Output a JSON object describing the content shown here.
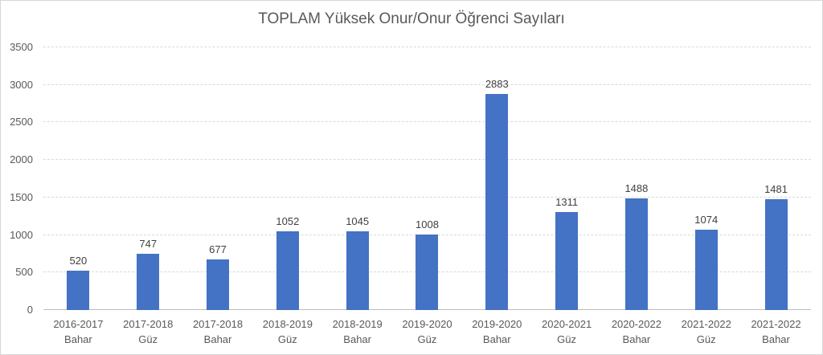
{
  "chart_data": {
    "type": "bar",
    "title": "TOPLAM Yüksek Onur/Onur Öğrenci Sayıları",
    "categories": [
      "2016-2017 Bahar",
      "2017-2018 Güz",
      "2017-2018 Bahar",
      "2018-2019 Güz",
      "2018-2019 Bahar",
      "2019-2020 Güz",
      "2019-2020 Bahar",
      "2020-2021 Güz",
      "2020-2022 Bahar",
      "2021-2022 Güz",
      "2021-2022 Bahar"
    ],
    "categories_two_line": [
      [
        "2016-2017",
        "Bahar"
      ],
      [
        "2017-2018",
        "Güz"
      ],
      [
        "2017-2018",
        "Bahar"
      ],
      [
        "2018-2019",
        "Güz"
      ],
      [
        "2018-2019",
        "Bahar"
      ],
      [
        "2019-2020",
        "Güz"
      ],
      [
        "2019-2020",
        "Bahar"
      ],
      [
        "2020-2021",
        "Güz"
      ],
      [
        "2020-2022",
        "Bahar"
      ],
      [
        "2021-2022",
        "Güz"
      ],
      [
        "2021-2022",
        "Bahar"
      ]
    ],
    "values": [
      520,
      747,
      677,
      1052,
      1045,
      1008,
      2883,
      1311,
      1488,
      1074,
      1481
    ],
    "xlabel": "",
    "ylabel": "",
    "ylim": [
      0,
      3500
    ],
    "yticks": [
      0,
      500,
      1000,
      1500,
      2000,
      2500,
      3000,
      3500
    ],
    "grid": true,
    "legend_position": "none",
    "data_labels_shown": true
  },
  "style": {
    "bar_color": "#4472C4",
    "title_color": "#595959",
    "tick_label_color": "#595959",
    "data_label_color": "#404040",
    "gridline_color": "#DADADA",
    "axis_line_color": "#BFBFBF",
    "background_color": "#FFFFFF",
    "border_color": "#D6D6D6"
  }
}
